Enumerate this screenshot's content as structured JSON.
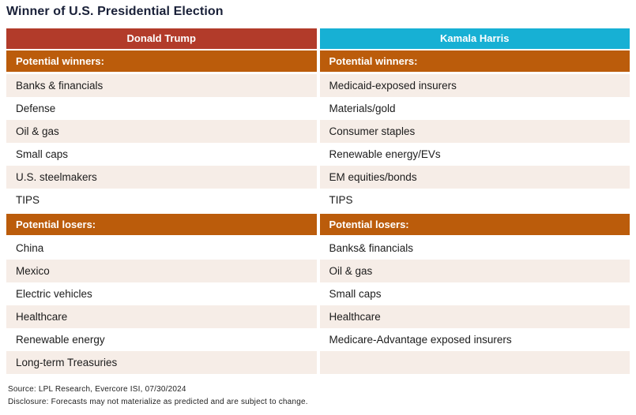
{
  "title": "Winner of U.S. Presidential Election",
  "colors": {
    "title_navy": "#192038",
    "trump_header_red": "#B23B2A",
    "harris_header_cyan": "#17B0D4",
    "section_orange": "#BB5C0B",
    "row_pink": "#F6EDE7",
    "row_white": "#FFFFFF",
    "data_text": "#1C1C1C"
  },
  "table": {
    "columns": [
      {
        "header": "Donald Trump",
        "header_color": "#B23B2A",
        "winners_label": "Potential winners:",
        "winners": [
          "Banks & financials",
          "Defense",
          "Oil & gas",
          "Small caps",
          "U.S. steelmakers",
          "TIPS"
        ],
        "losers_label": "Potential losers:",
        "losers": [
          "China",
          "Mexico",
          "Electric vehicles",
          "Healthcare",
          "Renewable energy",
          "Long-term Treasuries"
        ]
      },
      {
        "header": "Kamala Harris",
        "header_color": "#17B0D4",
        "winners_label": "Potential winners:",
        "winners": [
          "Medicaid-exposed insurers",
          "Materials/gold",
          "Consumer staples",
          "Renewable energy/EVs",
          "EM equities/bonds",
          "TIPS"
        ],
        "losers_label": "Potential losers:",
        "losers": [
          "Banks& financials",
          "Oil & gas",
          "Small caps",
          "Healthcare",
          "Medicare-Advantage exposed insurers",
          ""
        ]
      }
    ]
  },
  "footer": {
    "source": "Source: LPL Research, Evercore ISI, 07/30/2024",
    "disclosure": "Disclosure: Forecasts may not materialize as predicted and are subject to change."
  },
  "chart_data": {
    "type": "table",
    "title": "Winner of U.S. Presidential Election",
    "columns": [
      "Donald Trump",
      "Kamala Harris"
    ],
    "sections": [
      {
        "label": "Potential winners:",
        "Donald Trump": [
          "Banks & financials",
          "Defense",
          "Oil & gas",
          "Small caps",
          "U.S. steelmakers",
          "TIPS"
        ],
        "Kamala Harris": [
          "Medicaid-exposed insurers",
          "Materials/gold",
          "Consumer staples",
          "Renewable energy/EVs",
          "EM equities/bonds",
          "TIPS"
        ]
      },
      {
        "label": "Potential losers:",
        "Donald Trump": [
          "China",
          "Mexico",
          "Electric vehicles",
          "Healthcare",
          "Renewable energy",
          "Long-term Treasuries"
        ],
        "Kamala Harris": [
          "Banks& financials",
          "Oil & gas",
          "Small caps",
          "Healthcare",
          "Medicare-Advantage exposed insurers",
          ""
        ]
      }
    ],
    "source": "LPL Research, Evercore ISI, 07/30/2024",
    "disclosure": "Forecasts may not materialize as predicted and are subject to change."
  }
}
